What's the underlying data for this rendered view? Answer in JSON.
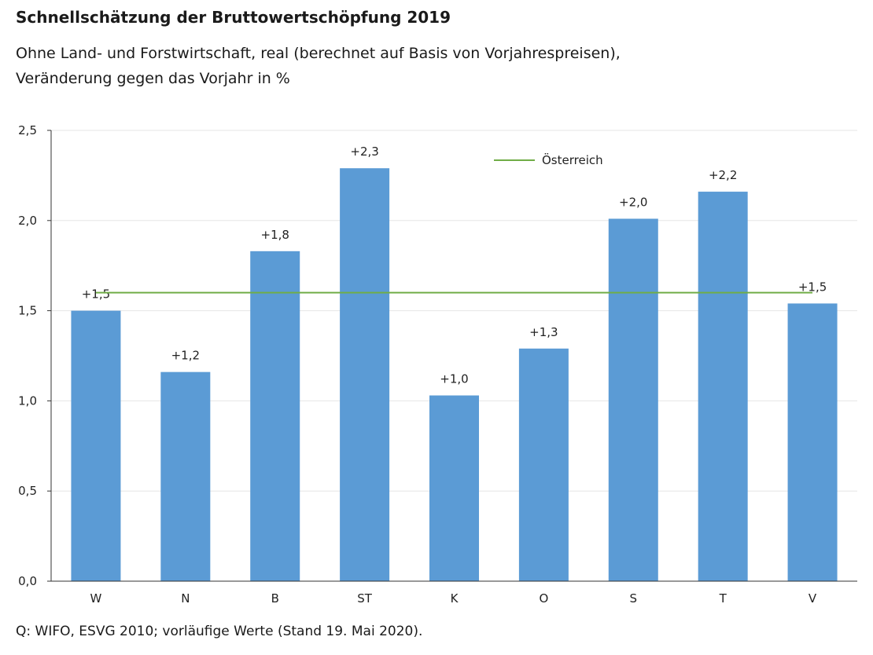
{
  "header": {
    "title": "Schnellschätzung der Bruttowertschöpfung 2019",
    "subtitle_line1": "Ohne Land- und Forstwirtschaft, real (berechnet auf Basis von Vorjahrespreisen),",
    "subtitle_line2": "Veränderung gegen das Vorjahr in %"
  },
  "footer": {
    "source": "Q: WIFO, ESVG 2010; vorläufige Werte (Stand 19. Mai 2020)."
  },
  "chart_data": {
    "type": "bar",
    "categories": [
      "W",
      "N",
      "B",
      "ST",
      "K",
      "O",
      "S",
      "T",
      "V"
    ],
    "values": [
      1.5,
      1.16,
      1.83,
      2.29,
      1.03,
      1.29,
      2.01,
      2.16,
      1.54
    ],
    "data_labels": [
      "+1,5",
      "+1,2",
      "+1,8",
      "+2,3",
      "+1,0",
      "+1,3",
      "+2,0",
      "+2,2",
      "+1,5"
    ],
    "reference_line": {
      "name": "Österreich",
      "value": 1.6
    },
    "ylim": [
      0,
      2.5
    ],
    "yticks": [
      0,
      0.5,
      1.0,
      1.5,
      2.0,
      2.5
    ],
    "ytick_labels": [
      "0,0",
      "0,5",
      "1,0",
      "1,5",
      "2,0",
      "2,5"
    ],
    "grid": true,
    "legend_position": "top-right",
    "colors": {
      "bar": "#5b9bd5",
      "reference_line": "#70ad47",
      "grid": "#e6e6e6",
      "axis": "#333333"
    }
  }
}
